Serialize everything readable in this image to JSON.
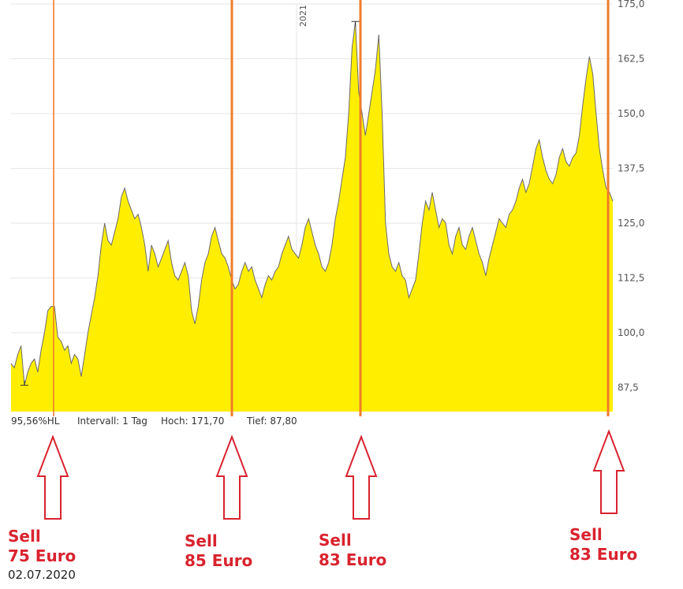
{
  "chart_data": {
    "type": "area",
    "year_label": "2021",
    "ylim": [
      82,
      175
    ],
    "y_ticks": [
      "175,0",
      "162,5",
      "150,0",
      "137,5",
      "125,0",
      "112,5",
      "100,0",
      "87,5"
    ],
    "y_tick_values": [
      175,
      162.5,
      150,
      137.5,
      125,
      112.5,
      100,
      87.5
    ],
    "series": [
      {
        "values": [
          93,
          92,
          95,
          97,
          88,
          91,
          93,
          94,
          91,
          96,
          100,
          105,
          106,
          106,
          99,
          98,
          96,
          97,
          93,
          95,
          94,
          90,
          95,
          100,
          104,
          108,
          113,
          120,
          125,
          121,
          120,
          123,
          126,
          131,
          133,
          130,
          128,
          126,
          127,
          124,
          120,
          114,
          120,
          118,
          115,
          117,
          119,
          121,
          116,
          113,
          112,
          114,
          116,
          113,
          105,
          102,
          106,
          112,
          116,
          118,
          122,
          124,
          121,
          118,
          117,
          115,
          112,
          110,
          111,
          114,
          116,
          114,
          115,
          112,
          110,
          108,
          111,
          113,
          112,
          114,
          115,
          118,
          120,
          122,
          119,
          118,
          117,
          120,
          124,
          126,
          123,
          120,
          118,
          115,
          114,
          116,
          120,
          126,
          130,
          135,
          140,
          150,
          165,
          171,
          155,
          150,
          145,
          150,
          155,
          160,
          168,
          150,
          125,
          118,
          115,
          114,
          116,
          113,
          112,
          108,
          110,
          112,
          118,
          125,
          130,
          128,
          132,
          128,
          124,
          126,
          125,
          120,
          118,
          122,
          124,
          120,
          119,
          122,
          124,
          121,
          118,
          116,
          113,
          117,
          120,
          123,
          126,
          125,
          124,
          127,
          128,
          130,
          133,
          135,
          132,
          134,
          138,
          142,
          144,
          140,
          137,
          135,
          134,
          136,
          140,
          142,
          139,
          138,
          140,
          141,
          145,
          152,
          158,
          163,
          159,
          150,
          142,
          137,
          133,
          132,
          130
        ]
      }
    ]
  },
  "stats": {
    "hl": "95,56%HL",
    "interval": "Intervall: 1 Tag",
    "high": "Hoch:  171,70",
    "low": "Tief:  87,80"
  },
  "annotations": [
    {
      "line1": "Sell",
      "line2": "75 Euro"
    },
    {
      "line1": "Sell",
      "line2": "85 Euro"
    },
    {
      "line1": "Sell",
      "line2": "83 Euro"
    },
    {
      "line1": "Sell",
      "line2": "83 Euro"
    }
  ],
  "date_label": "02.07.2020",
  "colors": {
    "area_fill": "#ffee00",
    "area_line": "#6b6b6b",
    "marker_line": "#ef7d2a",
    "annotation": "#d9232f",
    "grid": "#e6e6e6"
  }
}
